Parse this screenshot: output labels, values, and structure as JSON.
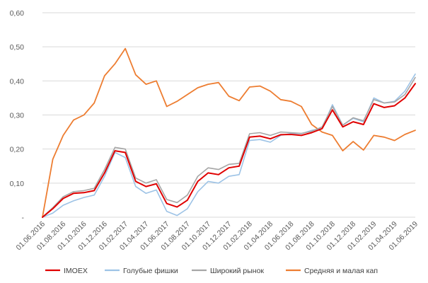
{
  "chart_data": {
    "type": "line",
    "title": "",
    "xlabel": "",
    "ylabel": "",
    "ylim": [
      0,
      0.6
    ],
    "grid": "horizontal",
    "legend_position": "bottom",
    "y_tick_labels": [
      "-",
      "0,10",
      "0,20",
      "0,30",
      "0,40",
      "0,50",
      "0,60"
    ],
    "y_tick_values": [
      0,
      0.1,
      0.2,
      0.3,
      0.4,
      0.5,
      0.6
    ],
    "x": [
      "01.06.2016",
      "01.07.2016",
      "01.08.2016",
      "01.09.2016",
      "01.10.2016",
      "01.11.2016",
      "01.12.2016",
      "01.01.2017",
      "01.02.2017",
      "01.03.2017",
      "01.04.2017",
      "01.05.2017",
      "01.06.2017",
      "01.07.2017",
      "01.08.2017",
      "01.09.2017",
      "01.10.2017",
      "01.11.2017",
      "01.12.2017",
      "01.01.2018",
      "01.02.2018",
      "01.03.2018",
      "01.04.2018",
      "01.05.2018",
      "01.06.2018",
      "01.07.2018",
      "01.08.2018",
      "01.09.2018",
      "01.10.2018",
      "01.11.2018",
      "01.12.2018",
      "01.01.2019",
      "01.02.2019",
      "01.03.2019",
      "01.04.2019",
      "01.05.2019",
      "01.06.2019"
    ],
    "x_tick_labels": [
      "01.06.2016",
      "01.08.2016",
      "01.10.2016",
      "01.12.2016",
      "01.02.2017",
      "01.04.2017",
      "01.06.2017",
      "01.08.2017",
      "01.10.2017",
      "01.12.2017",
      "01.02.2018",
      "01.04.2018",
      "01.06.2018",
      "01.08.2018",
      "01.10.2018",
      "01.12.2018",
      "01.02.2019",
      "01.04.2019",
      "01.06.2019"
    ],
    "series": [
      {
        "name": "IMOEX",
        "color": "#e00000",
        "width": 2,
        "values": [
          0,
          0.025,
          0.055,
          0.07,
          0.072,
          0.078,
          0.13,
          0.195,
          0.19,
          0.105,
          0.09,
          0.098,
          0.04,
          0.03,
          0.05,
          0.105,
          0.13,
          0.125,
          0.145,
          0.15,
          0.235,
          0.238,
          0.23,
          0.242,
          0.243,
          0.24,
          0.248,
          0.26,
          0.315,
          0.265,
          0.28,
          0.272,
          0.333,
          0.322,
          0.327,
          0.35,
          0.392
        ]
      },
      {
        "name": "Голубые фишки",
        "color": "#9dc3e6",
        "width": 1.6,
        "values": [
          0,
          0.012,
          0.035,
          0.048,
          0.058,
          0.065,
          0.12,
          0.19,
          0.175,
          0.09,
          0.07,
          0.08,
          0.017,
          0.005,
          0.025,
          0.075,
          0.105,
          0.1,
          0.12,
          0.125,
          0.225,
          0.228,
          0.22,
          0.24,
          0.246,
          0.245,
          0.255,
          0.26,
          0.33,
          0.27,
          0.29,
          0.28,
          0.35,
          0.335,
          0.34,
          0.37,
          0.42
        ]
      },
      {
        "name": "Широкий рынок",
        "color": "#a6a6a6",
        "width": 1.6,
        "values": [
          0,
          0.028,
          0.06,
          0.075,
          0.078,
          0.085,
          0.14,
          0.205,
          0.2,
          0.115,
          0.1,
          0.11,
          0.052,
          0.043,
          0.065,
          0.12,
          0.145,
          0.14,
          0.155,
          0.158,
          0.245,
          0.248,
          0.24,
          0.25,
          0.248,
          0.246,
          0.252,
          0.265,
          0.325,
          0.27,
          0.292,
          0.283,
          0.345,
          0.335,
          0.338,
          0.36,
          0.41
        ]
      },
      {
        "name": "Средняя и малая кап",
        "color": "#ed7d31",
        "width": 1.8,
        "values": [
          0,
          0.17,
          0.24,
          0.285,
          0.3,
          0.335,
          0.415,
          0.45,
          0.495,
          0.418,
          0.39,
          0.4,
          0.325,
          0.34,
          0.36,
          0.38,
          0.39,
          0.395,
          0.355,
          0.342,
          0.382,
          0.385,
          0.37,
          0.345,
          0.34,
          0.325,
          0.272,
          0.25,
          0.24,
          0.195,
          0.222,
          0.197,
          0.24,
          0.235,
          0.225,
          0.243,
          0.255
        ]
      }
    ]
  }
}
